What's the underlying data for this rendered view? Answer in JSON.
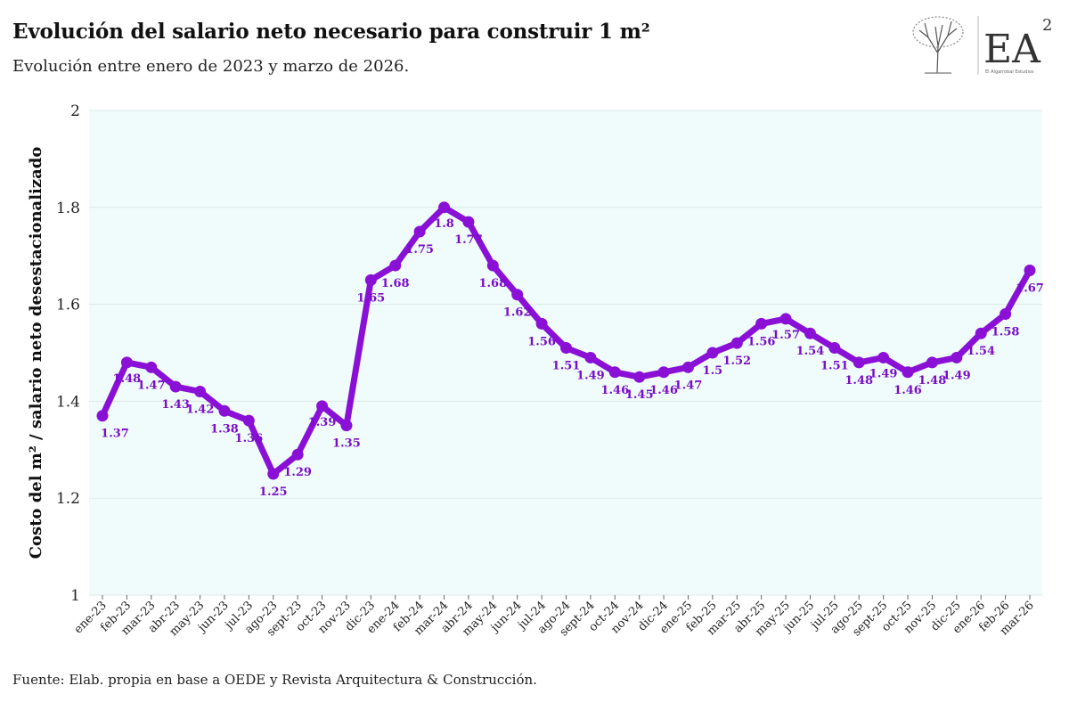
{
  "header": {
    "title": "Evolución del salario neto necesario para construir 1 m²",
    "subtitle": "Evolución entre enero de 2023 y marzo de 2026."
  },
  "footer": {
    "source": "Fuente: Elab. propia en base a OEDE y Revista Arquitectura & Construcción."
  },
  "logo": {
    "mark": "EA",
    "superscript": "2",
    "tagline": "El Algarrobal Estudios",
    "icon": "tree-icon"
  },
  "colors": {
    "line": "#8a10d6",
    "label": "#7a0dc7",
    "plot_bg": "#effcfb",
    "grid": "#dde9e8"
  },
  "chart_data": {
    "type": "line",
    "ylabel": "Costo del m² / salario neto desestacionalizado",
    "ylim": [
      1,
      2
    ],
    "yticks": [
      "1",
      "1.2",
      "1.4",
      "1.6",
      "1.8",
      "2"
    ],
    "grid": true,
    "categories": [
      "ene-23",
      "feb-23",
      "mar-23",
      "abr-23",
      "may-23",
      "jun-23",
      "jul-23",
      "ago-23",
      "sept-23",
      "oct-23",
      "nov-23",
      "dic-23",
      "ene-24",
      "feb-24",
      "mar-24",
      "abr-24",
      "may-24",
      "jun-24",
      "jul-24",
      "ago-24",
      "sept-24",
      "oct-24",
      "nov-24",
      "dic-24",
      "ene-25",
      "feb-25",
      "mar-25",
      "abr-25",
      "may-25",
      "jun-25",
      "jul-25",
      "ago-25",
      "sept-25",
      "oct-25",
      "nov-25",
      "dic-25",
      "ene-26",
      "feb-26",
      "mar-26"
    ],
    "values": [
      1.37,
      1.48,
      1.47,
      1.43,
      1.42,
      1.38,
      1.36,
      1.25,
      1.29,
      1.39,
      1.35,
      1.65,
      1.68,
      1.75,
      1.8,
      1.77,
      1.68,
      1.62,
      1.56,
      1.51,
      1.49,
      1.46,
      1.45,
      1.46,
      1.47,
      1.5,
      1.52,
      1.56,
      1.57,
      1.54,
      1.51,
      1.48,
      1.49,
      1.46,
      1.48,
      1.49,
      1.54,
      1.58,
      1.67
    ],
    "data_labels": [
      "1.37",
      "1.48",
      "1.47",
      "1.43",
      "1.42",
      "1.38",
      "1.36",
      "1.25",
      "1.29",
      "1.39",
      "1.35",
      "1.65",
      "1.68",
      "1.75",
      "1.8",
      "1.77",
      "1.68",
      "1.62",
      "1.56",
      "1.51",
      "1.49",
      "1.46",
      "1.45",
      "1.46",
      "1.47",
      "1.5",
      "1.52",
      "1.56",
      "1.57",
      "1.54",
      "1.51",
      "1.48",
      "1.49",
      "1.46",
      "1.48",
      "1.49",
      "1.54",
      "1.58",
      "1.67"
    ]
  }
}
